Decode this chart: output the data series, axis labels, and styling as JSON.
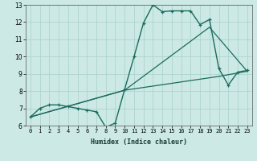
{
  "xlabel": "Humidex (Indice chaleur)",
  "xlim": [
    -0.5,
    23.5
  ],
  "ylim": [
    6,
    13
  ],
  "yticks": [
    6,
    7,
    8,
    9,
    10,
    11,
    12,
    13
  ],
  "xticks": [
    0,
    1,
    2,
    3,
    4,
    5,
    6,
    7,
    8,
    9,
    10,
    11,
    12,
    13,
    14,
    15,
    16,
    17,
    18,
    19,
    20,
    21,
    22,
    23
  ],
  "bg_color": "#cce9e5",
  "grid_color": "#add4cf",
  "line_color": "#1a6b5e",
  "line1_x": [
    0,
    1,
    2,
    3,
    4,
    5,
    6,
    7,
    8,
    9,
    10,
    11,
    12,
    13,
    14,
    15,
    16,
    17,
    18,
    19,
    20,
    21,
    22,
    23
  ],
  "line1_y": [
    6.5,
    7.0,
    7.2,
    7.2,
    7.1,
    7.0,
    6.9,
    6.8,
    5.9,
    6.15,
    8.1,
    10.0,
    11.95,
    13.0,
    12.6,
    12.65,
    12.65,
    12.65,
    11.85,
    12.15,
    9.3,
    8.35,
    9.1,
    9.2
  ],
  "line2_x": [
    0,
    10,
    20,
    23
  ],
  "line2_y": [
    6.5,
    8.05,
    8.85,
    9.15
  ],
  "line3_x": [
    0,
    10,
    19,
    23
  ],
  "line3_y": [
    6.5,
    8.05,
    11.7,
    9.15
  ]
}
